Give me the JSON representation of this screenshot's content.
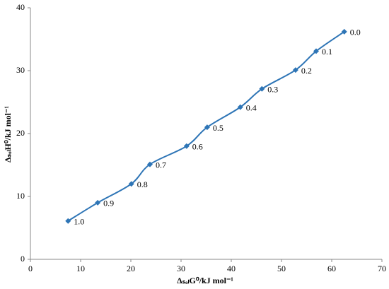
{
  "chart_data": {
    "type": "line",
    "smooth": true,
    "markers": "diamond",
    "color": "#2e75b6",
    "x_label": "ΔₛₒₗG⁰/kJ mol⁻¹",
    "y_label": "ΔₛₒₗH⁰/kJ mol⁻¹",
    "x": [
      7.5,
      13.4,
      20.1,
      23.8,
      31.1,
      35.2,
      41.8,
      46.1,
      52.8,
      56.9,
      62.5
    ],
    "y": [
      6.1,
      9.0,
      12.0,
      15.1,
      18.0,
      21.0,
      24.2,
      27.1,
      30.1,
      33.1,
      36.2
    ],
    "point_labels": [
      "1.0",
      "0.9",
      "0.8",
      "0.7",
      "0.6",
      "0.5",
      "0.4",
      "0.3",
      "0.2",
      "0.1",
      "0.0"
    ],
    "xlim": [
      0,
      70
    ],
    "xticks": [
      0,
      10,
      20,
      30,
      40,
      50,
      60,
      70
    ],
    "ylim": [
      0,
      40
    ],
    "yticks": [
      0,
      10,
      20,
      30,
      40
    ],
    "grid": false
  }
}
